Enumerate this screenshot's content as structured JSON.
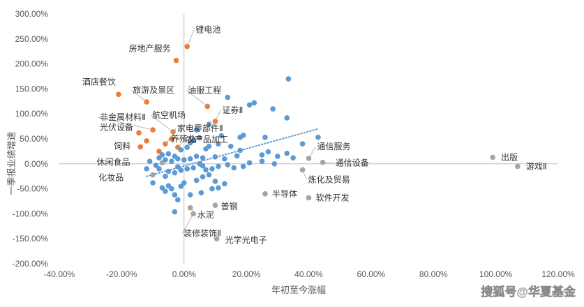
{
  "chart_data": {
    "type": "scatter",
    "xlabel": "年初至今涨幅",
    "ylabel": "一季报业绩增速",
    "xlim": [
      -0.4,
      1.2
    ],
    "ylim": [
      -2.0,
      3.0
    ],
    "x_ticks": [
      "-40.00%",
      "-20.00%",
      "0.00%",
      "20.00%",
      "40.00%",
      "60.00%",
      "80.00%",
      "100.00%",
      "120.00%"
    ],
    "y_ticks": [
      "300.00%",
      "250.00%",
      "200.00%",
      "150.00%",
      "100.00%",
      "50.00%",
      "0.00%",
      "-50.00%",
      "-100.00%",
      "-150.00%",
      "-200.00%"
    ],
    "grid": false,
    "trendline": {
      "type": "linear",
      "color": "#5B9BD5",
      "style": "dotted",
      "from": [
        -0.12,
        -0.25
      ],
      "to": [
        0.43,
        0.7
      ]
    },
    "series": [
      {
        "color": "#ED7D31",
        "points": [
          {
            "x": 0.01,
            "y": 2.35,
            "label": "锂电池"
          },
          {
            "x": -0.025,
            "y": 2.07,
            "label": "房地产服务"
          },
          {
            "x": -0.21,
            "y": 1.39,
            "label": "酒店餐饮"
          },
          {
            "x": -0.12,
            "y": 1.24,
            "label": "旅游及景区"
          },
          {
            "x": 0.075,
            "y": 1.15,
            "label": "油服工程"
          },
          {
            "x": 0.1,
            "y": 0.85,
            "label": "证券Ⅱ"
          },
          {
            "x": -0.1,
            "y": 0.68,
            "label": "非金属材料Ⅱ"
          },
          {
            "x": -0.145,
            "y": 0.62,
            "label": "光伏设备"
          },
          {
            "x": -0.035,
            "y": 0.64,
            "label": "航空机场"
          },
          {
            "x": -0.12,
            "y": 0.46,
            "label": ""
          },
          {
            "x": -0.04,
            "y": 0.5,
            "label": "家电零部件Ⅱ"
          },
          {
            "x": -0.06,
            "y": 0.4,
            "label": "养殖业"
          },
          {
            "x": -0.14,
            "y": 0.34,
            "label": "饲料"
          },
          {
            "x": -0.02,
            "y": 0.33,
            "label": "农产品加工"
          },
          {
            "x": -0.08,
            "y": 0.25,
            "label": ""
          }
        ]
      },
      {
        "color": "#A5A5A5",
        "points": [
          {
            "x": 0.4,
            "y": 0.11,
            "label": "通信服务"
          },
          {
            "x": 0.445,
            "y": 0.03,
            "label": "通信设备"
          },
          {
            "x": 0.38,
            "y": -0.12,
            "label": "炼化及贸易"
          },
          {
            "x": 0.26,
            "y": -0.6,
            "label": "半导体"
          },
          {
            "x": 0.4,
            "y": -0.68,
            "label": "软件开发"
          },
          {
            "x": 0.1,
            "y": -0.83,
            "label": "普钢"
          },
          {
            "x": 0.02,
            "y": -0.88,
            "label": "水泥"
          },
          {
            "x": 0.03,
            "y": -1.0,
            "label": "装修装饰Ⅱ"
          },
          {
            "x": 0.105,
            "y": -1.5,
            "label": "光学光电子"
          },
          {
            "x": 0.99,
            "y": 0.13,
            "label": "出版"
          },
          {
            "x": 1.07,
            "y": -0.05,
            "label": "游戏Ⅱ"
          },
          {
            "x": -0.1,
            "y": -0.22,
            "label": "化妆品"
          },
          {
            "x": -0.07,
            "y": 0.02,
            "label": "休闲食品"
          }
        ]
      },
      {
        "color": "#5B9BD5",
        "points": [
          {
            "x": 0.335,
            "y": 1.7,
            "label": ""
          },
          {
            "x": 0.14,
            "y": 1.33,
            "label": ""
          },
          {
            "x": 0.225,
            "y": 1.22,
            "label": ""
          },
          {
            "x": 0.21,
            "y": 1.18,
            "label": ""
          },
          {
            "x": 0.285,
            "y": 1.1,
            "label": ""
          },
          {
            "x": 0.33,
            "y": 0.92,
            "label": ""
          },
          {
            "x": 0.08,
            "y": 0.79,
            "label": ""
          },
          {
            "x": 0.04,
            "y": 0.68,
            "label": ""
          },
          {
            "x": 0.19,
            "y": 0.57,
            "label": ""
          },
          {
            "x": 0.18,
            "y": 0.53,
            "label": ""
          },
          {
            "x": 0.12,
            "y": 0.56,
            "label": ""
          },
          {
            "x": 0.26,
            "y": 0.53,
            "label": ""
          },
          {
            "x": 0.43,
            "y": 0.53,
            "label": ""
          },
          {
            "x": 0.05,
            "y": 0.52,
            "label": ""
          },
          {
            "x": 0.03,
            "y": 0.47,
            "label": ""
          },
          {
            "x": 0.02,
            "y": 0.42,
            "label": ""
          },
          {
            "x": 0.38,
            "y": 0.4,
            "label": ""
          },
          {
            "x": 0.11,
            "y": 0.4,
            "label": ""
          },
          {
            "x": 0.15,
            "y": 0.35,
            "label": ""
          },
          {
            "x": 0.08,
            "y": 0.35,
            "label": ""
          },
          {
            "x": 0.07,
            "y": 0.3,
            "label": ""
          },
          {
            "x": 0.01,
            "y": 0.33,
            "label": ""
          },
          {
            "x": -0.01,
            "y": 0.28,
            "label": ""
          },
          {
            "x": 0.18,
            "y": 0.27,
            "label": ""
          },
          {
            "x": 0.27,
            "y": 0.24,
            "label": ""
          },
          {
            "x": 0.33,
            "y": 0.21,
            "label": ""
          },
          {
            "x": 0.25,
            "y": 0.18,
            "label": ""
          },
          {
            "x": 0.3,
            "y": 0.15,
            "label": ""
          },
          {
            "x": 0.35,
            "y": 0.12,
            "label": ""
          },
          {
            "x": 0.17,
            "y": 0.16,
            "label": ""
          },
          {
            "x": 0.13,
            "y": 0.1,
            "label": ""
          },
          {
            "x": 0.1,
            "y": 0.14,
            "label": ""
          },
          {
            "x": 0.06,
            "y": 0.12,
            "label": ""
          },
          {
            "x": 0.04,
            "y": 0.15,
            "label": ""
          },
          {
            "x": 0.02,
            "y": 0.1,
            "label": ""
          },
          {
            "x": 0.0,
            "y": 0.08,
            "label": ""
          },
          {
            "x": -0.02,
            "y": 0.1,
            "label": ""
          },
          {
            "x": -0.04,
            "y": 0.05,
            "label": ""
          },
          {
            "x": -0.06,
            "y": 0.08,
            "label": ""
          },
          {
            "x": -0.08,
            "y": 0.12,
            "label": ""
          },
          {
            "x": -0.03,
            "y": 0.15,
            "label": ""
          },
          {
            "x": -0.05,
            "y": 0.2,
            "label": ""
          },
          {
            "x": -0.07,
            "y": 0.18,
            "label": ""
          },
          {
            "x": 0.25,
            "y": 0.05,
            "label": ""
          },
          {
            "x": 0.29,
            "y": 0.0,
            "label": ""
          },
          {
            "x": 0.21,
            "y": 0.02,
            "label": ""
          },
          {
            "x": 0.19,
            "y": -0.05,
            "label": ""
          },
          {
            "x": 0.16,
            "y": -0.08,
            "label": ""
          },
          {
            "x": 0.14,
            "y": -0.02,
            "label": ""
          },
          {
            "x": 0.11,
            "y": -0.05,
            "label": ""
          },
          {
            "x": 0.09,
            "y": -0.1,
            "label": ""
          },
          {
            "x": 0.07,
            "y": -0.12,
            "label": ""
          },
          {
            "x": 0.06,
            "y": -0.04,
            "label": ""
          },
          {
            "x": 0.05,
            "y": 0.0,
            "label": ""
          },
          {
            "x": 0.03,
            "y": -0.08,
            "label": ""
          },
          {
            "x": 0.01,
            "y": -0.1,
            "label": ""
          },
          {
            "x": -0.01,
            "y": -0.13,
            "label": ""
          },
          {
            "x": -0.02,
            "y": -0.06,
            "label": ""
          },
          {
            "x": -0.03,
            "y": -0.18,
            "label": ""
          },
          {
            "x": -0.05,
            "y": -0.15,
            "label": ""
          },
          {
            "x": -0.06,
            "y": -0.25,
            "label": ""
          },
          {
            "x": -0.08,
            "y": -0.1,
            "label": ""
          },
          {
            "x": -0.09,
            "y": -0.03,
            "label": ""
          },
          {
            "x": -0.11,
            "y": 0.05,
            "label": ""
          },
          {
            "x": -0.12,
            "y": -0.1,
            "label": ""
          },
          {
            "x": -0.1,
            "y": -0.38,
            "label": ""
          },
          {
            "x": -0.07,
            "y": -0.48,
            "label": ""
          },
          {
            "x": -0.06,
            "y": -0.55,
            "label": ""
          },
          {
            "x": -0.05,
            "y": -0.44,
            "label": ""
          },
          {
            "x": -0.04,
            "y": -0.5,
            "label": ""
          },
          {
            "x": -0.03,
            "y": -0.62,
            "label": ""
          },
          {
            "x": -0.01,
            "y": -0.45,
            "label": ""
          },
          {
            "x": 0.0,
            "y": -0.38,
            "label": ""
          },
          {
            "x": -0.02,
            "y": -0.72,
            "label": ""
          },
          {
            "x": -0.03,
            "y": -0.96,
            "label": ""
          },
          {
            "x": 0.02,
            "y": -0.62,
            "label": ""
          },
          {
            "x": 0.04,
            "y": -0.33,
            "label": ""
          },
          {
            "x": 0.06,
            "y": -0.26,
            "label": ""
          },
          {
            "x": 0.08,
            "y": -0.22,
            "label": ""
          },
          {
            "x": 0.09,
            "y": -0.5,
            "label": ""
          },
          {
            "x": 0.11,
            "y": -0.48,
            "label": ""
          },
          {
            "x": 0.13,
            "y": -0.4,
            "label": ""
          },
          {
            "x": 0.055,
            "y": -0.58,
            "label": ""
          },
          {
            "x": 0.1,
            "y": -0.35,
            "label": ""
          }
        ]
      }
    ]
  },
  "watermark": "搜狐号@华夏基金"
}
